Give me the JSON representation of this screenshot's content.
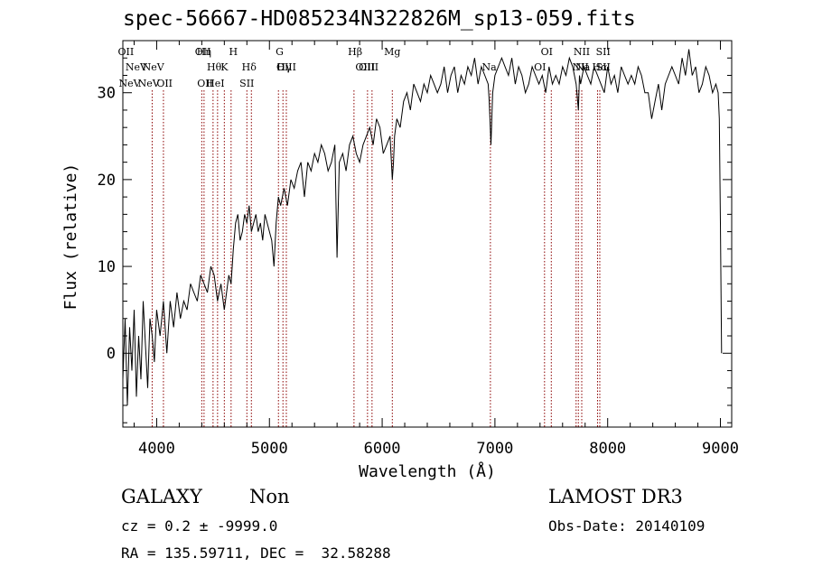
{
  "chart_data": {
    "type": "line",
    "title": "spec-56667-HD085234N322826M_sp13-059.fits",
    "xlabel": "Wavelength (Å)",
    "ylabel": "Flux (relative)",
    "xlim": [
      3700,
      9100
    ],
    "ylim": [
      -8.5,
      36
    ],
    "xticks": [
      4000,
      5000,
      6000,
      7000,
      8000,
      9000
    ],
    "xtick_labels": [
      "4000",
      "5000",
      "6000",
      "7000",
      "8000",
      "9000"
    ],
    "yticks": [
      0,
      10,
      20,
      30
    ],
    "ytick_labels": [
      "0",
      "10",
      "20",
      "30"
    ],
    "grid": false,
    "line_color": "#000000",
    "marker_color": "#8b0000",
    "series": [
      {
        "name": "flux",
        "x": [
          3700,
          3720,
          3740,
          3760,
          3780,
          3800,
          3820,
          3840,
          3860,
          3880,
          3900,
          3920,
          3940,
          3960,
          3980,
          4000,
          4030,
          4060,
          4090,
          4120,
          4150,
          4180,
          4210,
          4240,
          4270,
          4300,
          4330,
          4360,
          4390,
          4420,
          4450,
          4480,
          4510,
          4540,
          4570,
          4600,
          4620,
          4640,
          4660,
          4680,
          4700,
          4720,
          4740,
          4760,
          4780,
          4800,
          4820,
          4840,
          4860,
          4880,
          4900,
          4920,
          4940,
          4960,
          4980,
          5000,
          5020,
          5040,
          5060,
          5080,
          5100,
          5130,
          5160,
          5190,
          5220,
          5250,
          5280,
          5310,
          5340,
          5370,
          5400,
          5430,
          5460,
          5490,
          5520,
          5550,
          5580,
          5600,
          5620,
          5650,
          5680,
          5710,
          5740,
          5770,
          5800,
          5830,
          5860,
          5890,
          5920,
          5950,
          5980,
          6010,
          6040,
          6070,
          6090,
          6100,
          6110,
          6130,
          6160,
          6190,
          6220,
          6250,
          6280,
          6310,
          6340,
          6370,
          6400,
          6430,
          6460,
          6490,
          6520,
          6550,
          6580,
          6610,
          6640,
          6670,
          6700,
          6730,
          6760,
          6790,
          6820,
          6850,
          6880,
          6910,
          6940,
          6950,
          6965,
          6980,
          7000,
          7030,
          7060,
          7090,
          7120,
          7150,
          7180,
          7210,
          7240,
          7270,
          7300,
          7330,
          7360,
          7390,
          7420,
          7450,
          7480,
          7510,
          7540,
          7570,
          7600,
          7630,
          7660,
          7690,
          7720,
          7740,
          7750,
          7760,
          7790,
          7820,
          7850,
          7880,
          7910,
          7940,
          7970,
          8000,
          8030,
          8060,
          8090,
          8120,
          8150,
          8180,
          8210,
          8240,
          8270,
          8300,
          8330,
          8360,
          8390,
          8420,
          8450,
          8480,
          8510,
          8540,
          8570,
          8600,
          8630,
          8660,
          8690,
          8720,
          8750,
          8780,
          8810,
          8840,
          8870,
          8900,
          8930,
          8960,
          8980,
          8990,
          9000,
          9010
        ],
        "y": [
          -3,
          4,
          -6,
          3,
          -2,
          5,
          -5,
          2,
          -3,
          6,
          1,
          -4,
          4,
          2,
          -1,
          5,
          2,
          6,
          0,
          6,
          3,
          7,
          4,
          6,
          5,
          8,
          7,
          6,
          9,
          8,
          7,
          10,
          9,
          6,
          8,
          5,
          7,
          9,
          8,
          12,
          15,
          16,
          13,
          14,
          16,
          15,
          17,
          14,
          15,
          16,
          14,
          15,
          13,
          16,
          15,
          14,
          13,
          10,
          15,
          18,
          17,
          19,
          17,
          20,
          19,
          21,
          22,
          18,
          22,
          21,
          23,
          22,
          24,
          23,
          21,
          22,
          24,
          11,
          22,
          23,
          21,
          24,
          25,
          23,
          22,
          24,
          25,
          26,
          24,
          27,
          26,
          23,
          24,
          25,
          20,
          22,
          25,
          27,
          26,
          29,
          30,
          28,
          31,
          30,
          29,
          31,
          30,
          32,
          31,
          30,
          31,
          33,
          30,
          32,
          33,
          30,
          32,
          31,
          33,
          32,
          34,
          31,
          33,
          32,
          31,
          29,
          24,
          30,
          32,
          33,
          34,
          33,
          32,
          34,
          31,
          33,
          32,
          30,
          31,
          33,
          32,
          31,
          32,
          30,
          33,
          31,
          32,
          31,
          33,
          32,
          34,
          33,
          31,
          28,
          32,
          31,
          33,
          32,
          31,
          33,
          32,
          31,
          30,
          33,
          31,
          32,
          30,
          33,
          32,
          31,
          32,
          31,
          33,
          32,
          30,
          30,
          27,
          29,
          31,
          28,
          31,
          32,
          33,
          32,
          31,
          34,
          32,
          35,
          32,
          33,
          30,
          31,
          33,
          32,
          30,
          31,
          30,
          27,
          15,
          0
        ],
        "values_shown": "approximate trace of the noisy spectrum"
      }
    ],
    "line_markers": [
      {
        "label": "OII",
        "x": 3727,
        "row": 1
      },
      {
        "label": "NeV",
        "x": 3426,
        "row": 3
      },
      {
        "label": "NeV",
        "x": 3346,
        "row": 4
      },
      {
        "label": "NeV",
        "x": 3970,
        "row": 3
      },
      {
        "label": "NeV",
        "x": 3930,
        "row": 4
      },
      {
        "label": "OII",
        "x": 4070,
        "row": 4
      },
      {
        "label": "OII",
        "x": 4410,
        "row": 1
      },
      {
        "label": "Hη",
        "x": 4420,
        "row": 1
      },
      {
        "label": "H",
        "x": 4680,
        "row": 1
      },
      {
        "label": "Hθ",
        "x": 4510,
        "row": 2
      },
      {
        "label": "K",
        "x": 4600,
        "row": 2
      },
      {
        "label": "Hδ",
        "x": 4820,
        "row": 2
      },
      {
        "label": "OII",
        "x": 4430,
        "row": 4
      },
      {
        "label": "HeI",
        "x": 4520,
        "row": 4
      },
      {
        "label": "SII",
        "x": 4800,
        "row": 4
      },
      {
        "label": "G",
        "x": 5090,
        "row": 1
      },
      {
        "label": "OIII",
        "x": 5150,
        "row": 2
      },
      {
        "label": "Hγ",
        "x": 5130,
        "row": 3
      },
      {
        "label": "Hβ",
        "x": 5760,
        "row": 1
      },
      {
        "label": "OIII",
        "x": 5880,
        "row": 2
      },
      {
        "label": "OIII",
        "x": 5850,
        "row": 3
      },
      {
        "label": "Mg",
        "x": 6090,
        "row": 1
      },
      {
        "label": "Na",
        "x": 6950,
        "row": 3
      },
      {
        "label": "OI",
        "x": 7460,
        "row": 1
      },
      {
        "label": "OI",
        "x": 7400,
        "row": 2
      },
      {
        "label": "NII",
        "x": 7770,
        "row": 1
      },
      {
        "label": "SII",
        "x": 7960,
        "row": 1
      },
      {
        "label": "Na",
        "x": 7780,
        "row": 2
      },
      {
        "label": "SII",
        "x": 7960,
        "row": 2
      },
      {
        "label": "NII",
        "x": 7760,
        "row": 3
      },
      {
        "label": "Hα",
        "x": 7930,
        "row": 3
      }
    ],
    "marker_lines_x": [
      3960,
      4060,
      4400,
      4420,
      4500,
      4540,
      4600,
      4660,
      4800,
      4840,
      5080,
      5120,
      5150,
      5750,
      5870,
      5910,
      6090,
      6960,
      7440,
      7500,
      7720,
      7740,
      7770,
      7910,
      7930
    ]
  },
  "footer": {
    "object_type": "GALAXY",
    "subclass": "Non",
    "survey": "LAMOST DR3",
    "cz": "cz = 0.2 ± -9999.0",
    "obs_date": "Obs-Date: 20140109",
    "coords": "RA = 135.59711, DEC =  32.58288"
  }
}
